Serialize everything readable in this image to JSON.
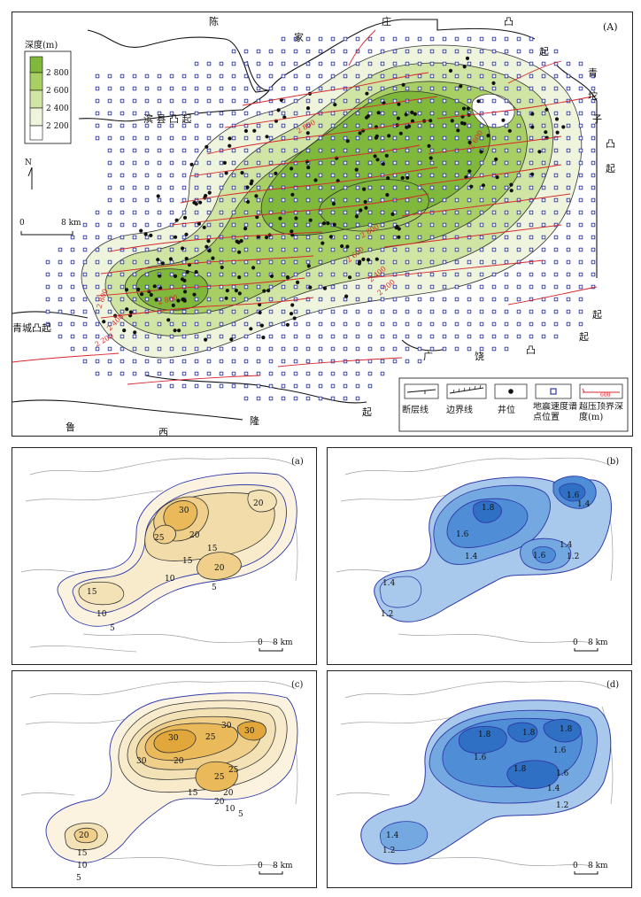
{
  "panels": {
    "A": {
      "label": "(A)",
      "place_names": {
        "chen": "陈",
        "jia": "家",
        "zhuang": "庄",
        "tu_top": "凸",
        "qi_top": "起",
        "binxian": "滨 县 凸 起",
        "qing": "青",
        "tuo": "坨",
        "zi": "子",
        "tu_right": "凸",
        "qi_right": "起",
        "qi_right2": "起",
        "qingcheng": "青城凸起",
        "guang": "广",
        "rao": "饶",
        "tu_bottom": "凸",
        "qi_bottom": "起",
        "lu": "鲁",
        "xi": "西",
        "long": "隆",
        "qi_lu": "起"
      },
      "depth_legend": {
        "title": "深度(m)",
        "ticks": [
          "2 800",
          "2 600",
          "2 400",
          "2 200"
        ],
        "colors": [
          "#7fb83a",
          "#a8cf63",
          "#d0e4a4",
          "#eef5dc",
          "#ffffff"
        ]
      },
      "north": "N",
      "scale": {
        "zero": "0",
        "length": "8 km"
      },
      "contour_labels": [
        "2 800",
        "2 800",
        "2 800",
        "2 600",
        "2 600",
        "2 400",
        "2 400",
        "2 200",
        "2 200",
        "2 600",
        "2 800",
        "2 400",
        "2 200"
      ],
      "legend": {
        "fault": "断层线",
        "boundary": "边界线",
        "well": "井位",
        "seismic": "地震速度谱点位置",
        "overpressure": "超压顶界深度(m)",
        "overpressure_sample": "600"
      }
    },
    "a": {
      "label": "(a)",
      "contours": [
        "30",
        "20",
        "25",
        "20",
        "15",
        "15",
        "20",
        "10",
        "5",
        "15",
        "10",
        "5"
      ],
      "scale": {
        "zero": "0",
        "length": "8 km"
      }
    },
    "b": {
      "label": "(b)",
      "contours": [
        "1.8",
        "1.6",
        "1.4",
        "1.6",
        "1.4",
        "1.6",
        "1.4",
        "1.2",
        "1.4",
        "1.2"
      ],
      "scale": {
        "zero": "0",
        "length": "8 km"
      }
    },
    "c": {
      "label": "(c)",
      "contours": [
        "30",
        "30",
        "25",
        "30",
        "20",
        "30",
        "25",
        "20",
        "25",
        "20",
        "15",
        "10",
        "5",
        "20",
        "15",
        "10",
        "5"
      ],
      "scale": {
        "zero": "0",
        "length": "8 km"
      }
    },
    "d": {
      "label": "(d)",
      "contours": [
        "1.8",
        "1.8",
        "1.8",
        "1.6",
        "1.6",
        "1.8",
        "1.6",
        "1.4",
        "1.2",
        "1.4",
        "1.2"
      ],
      "scale": {
        "zero": "0",
        "length": "8 km"
      }
    }
  }
}
